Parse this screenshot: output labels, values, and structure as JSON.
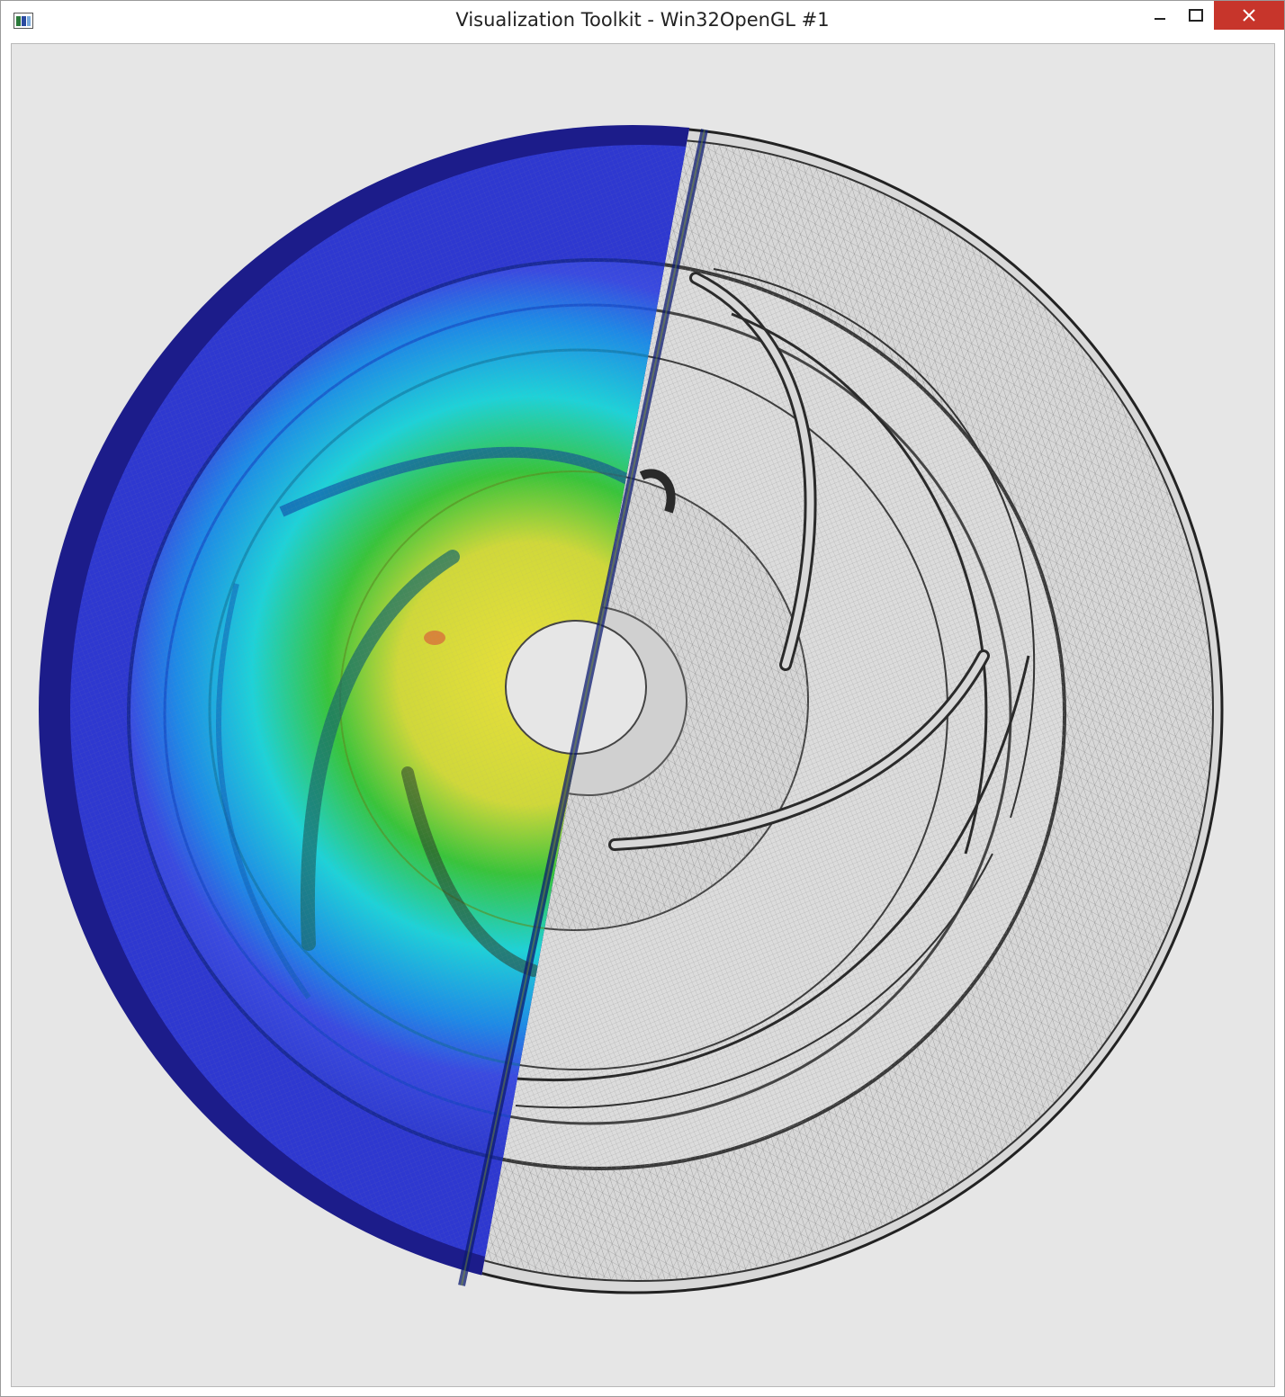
{
  "window": {
    "title": "Visualization Toolkit - Win32OpenGL #1",
    "icon": "vtk-window-icon",
    "controls": {
      "minimize": "minimize-icon",
      "maximize": "maximize-icon",
      "close": "close-icon"
    }
  },
  "render_view": {
    "background": "#e6e6e6",
    "scene": "impeller-mesh",
    "colormap": [
      "#1a1aa0",
      "#2e3fd8",
      "#1e8ae6",
      "#1ed2d8",
      "#22c23a",
      "#b6d62e",
      "#e8e03a",
      "#d86a3a"
    ],
    "wireframe_color": "#1a1a1a"
  }
}
